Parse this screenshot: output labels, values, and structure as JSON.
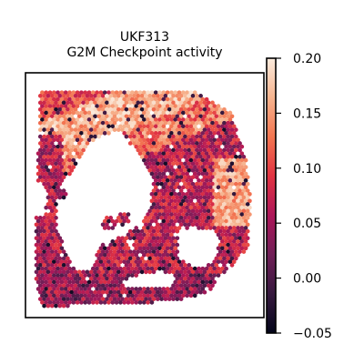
{
  "chart_data": {
    "type": "heatmap",
    "title": "UKF313",
    "subtitle": "G2M Checkpoint activity",
    "xlabel": "",
    "ylabel": "",
    "grid": false,
    "colorbar": {
      "range": [
        -0.05,
        0.2
      ],
      "ticks": [
        -0.05,
        0.0,
        0.05,
        0.1,
        0.15,
        0.2
      ],
      "tick_labels": [
        "−0.05",
        "0.00",
        "0.05",
        "0.10",
        "0.15",
        "0.20"
      ],
      "colormap": "rocket",
      "colors": [
        "#03051a",
        "#36193e",
        "#701f57",
        "#ad1759",
        "#e13342",
        "#f37651",
        "#f6b48f",
        "#faebdd"
      ]
    },
    "spatial_pattern": {
      "description_values": "tissue section; highest activity (~0.15-0.20) along upper band, moderate (~0.05-0.12) elsewhere, low (~-0.05-0.03) near central void edge",
      "high_region_level": 0.17,
      "mid_region_level": 0.08,
      "low_region_level": 0.0
    }
  }
}
